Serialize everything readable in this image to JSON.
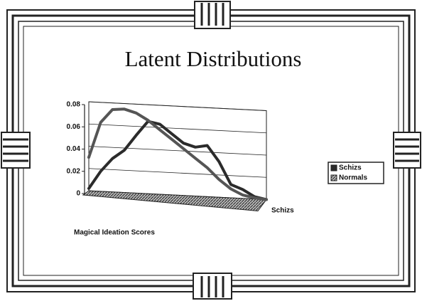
{
  "chart_data": {
    "type": "line",
    "title": "Latent Distributions",
    "x_label": "Magical Ideation Scores",
    "series_axis_labels": [
      "Schizs"
    ],
    "categories": [
      null,
      null,
      null,
      null,
      null,
      null,
      null,
      null,
      null,
      null,
      null,
      null,
      null,
      null,
      null,
      null
    ],
    "series": [
      {
        "name": "Schizs",
        "color": "#2b2b2b",
        "values": [
          0.002,
          0.018,
          0.03,
          0.038,
          0.052,
          0.065,
          0.063,
          0.055,
          0.047,
          0.044,
          0.046,
          0.032,
          0.012,
          0.008,
          0.002,
          0
        ]
      },
      {
        "name": "Normals",
        "color": "#555555",
        "values": [
          0.03,
          0.062,
          0.074,
          0.075,
          0.072,
          0.066,
          0.058,
          0.05,
          0.042,
          0.034,
          0.026,
          0.016,
          0.008,
          0.003,
          0.001,
          0
        ]
      }
    ],
    "ylim": [
      0,
      0.08
    ],
    "yticks": [
      0,
      0.02,
      0.04,
      0.06,
      0.08
    ],
    "grid": true,
    "legend": "right"
  }
}
